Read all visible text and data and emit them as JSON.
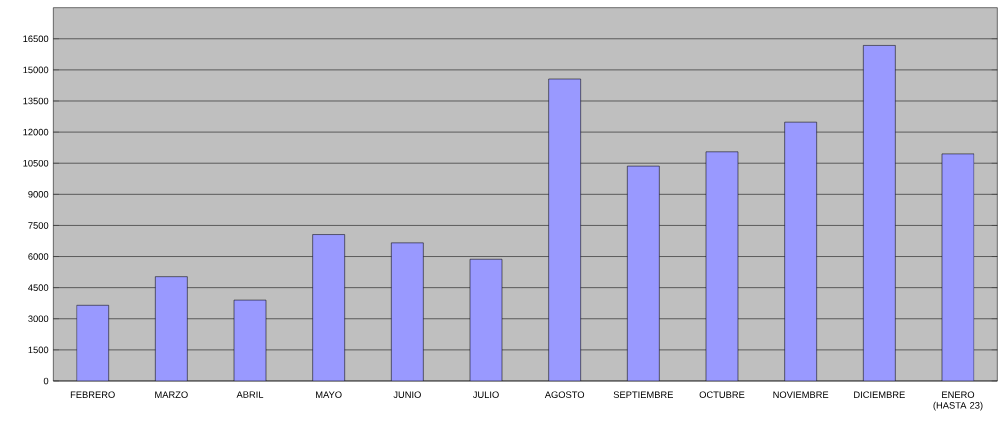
{
  "chart_data": {
    "type": "bar",
    "categories": [
      "FEBRERO",
      "MARZO",
      "ABRIL",
      "MAYO",
      "JUNIO",
      "JULIO",
      "AGOSTO",
      "SEPTIEMBRE",
      "OCTUBRE",
      "NOVIEMBRE",
      "DICIEMBRE",
      "ENERO (HASTA 23)"
    ],
    "values": [
      3650,
      5030,
      3900,
      7060,
      6660,
      5870,
      14560,
      10360,
      11050,
      12480,
      16180,
      10950
    ],
    "color": "#9999ff",
    "ylim": [
      0,
      18000
    ],
    "yticks": [
      0,
      1500,
      3000,
      4500,
      6000,
      7500,
      9000,
      10500,
      12000,
      13500,
      15000,
      16500
    ],
    "grid": "y"
  }
}
